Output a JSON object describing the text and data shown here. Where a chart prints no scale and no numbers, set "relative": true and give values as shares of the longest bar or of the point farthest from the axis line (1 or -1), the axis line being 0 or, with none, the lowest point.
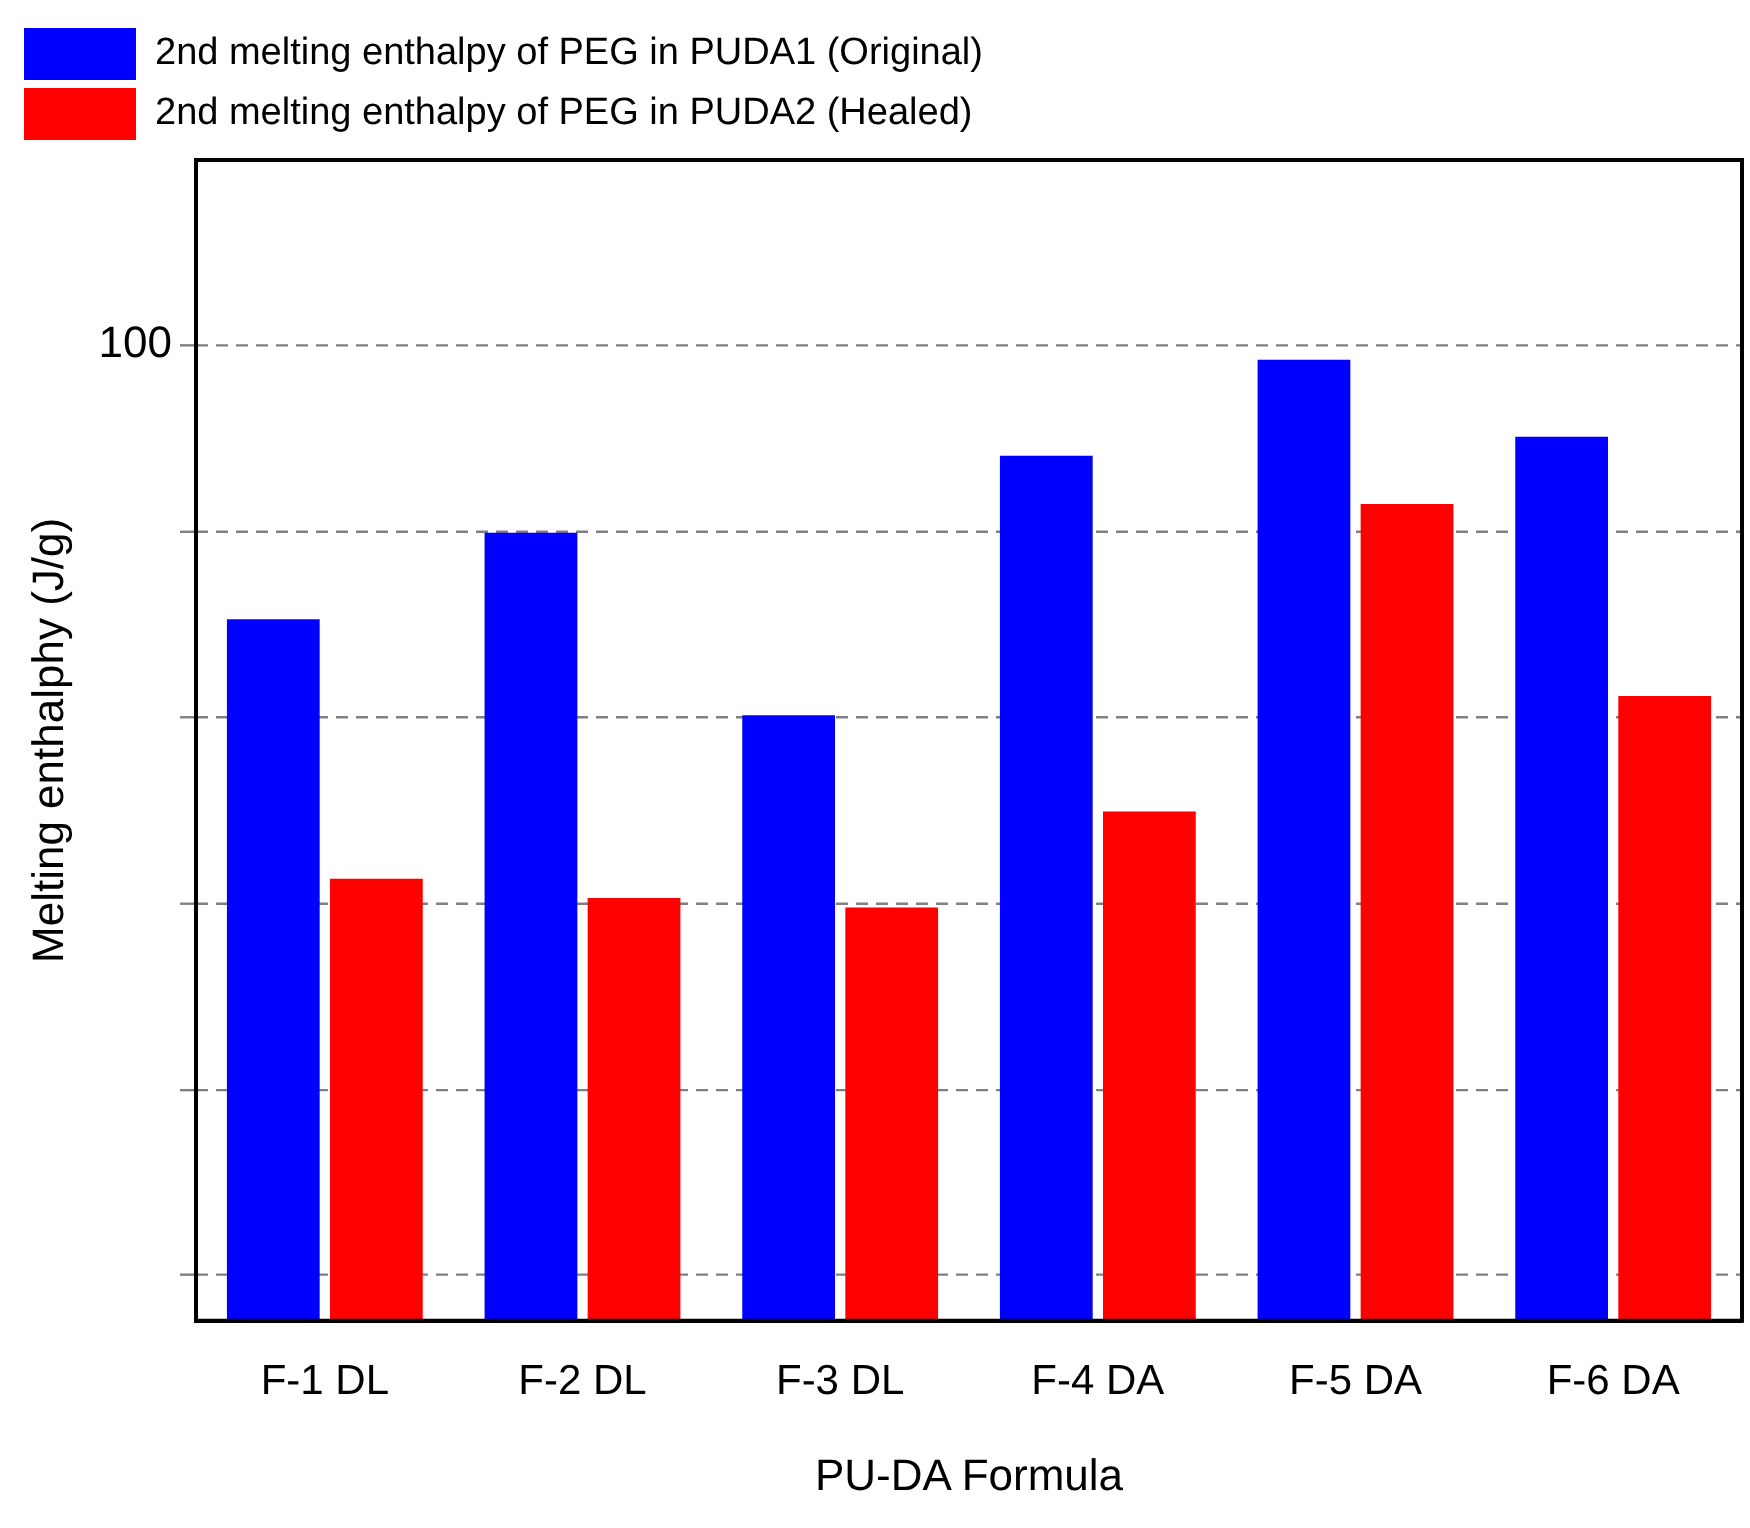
{
  "chart_data": {
    "type": "bar",
    "relative": true,
    "xlabel": "PU-DA Formula",
    "ylabel": "Melting enthalphy (J/g)",
    "categories": [
      "F-1 DL",
      "F-2 DL",
      "F-3 DL",
      "F-4 DA",
      "F-5 DA",
      "F-6 DA"
    ],
    "series": [
      {
        "name": "2nd melting enthalpy of PEG in PUDA1 (Original)",
        "color": "#0000ff",
        "values": [
          0.73,
          0.82,
          0.63,
          0.9,
          1,
          0.92
        ]
      },
      {
        "name": "2nd melting enthalpy of PEG in PUDA2 (Healed)",
        "color": "#ff0000",
        "values": [
          0.46,
          0.44,
          0.43,
          0.53,
          0.85,
          0.65
        ]
      }
    ],
    "ref_lines": [
      {
        "axis": "y",
        "value": 1.015,
        "color": "#808080",
        "line_style": "dashed"
      },
      {
        "axis": "y",
        "value": 0.821,
        "color": "#808080",
        "line_style": "dashed"
      },
      {
        "axis": "y",
        "value": 0.628,
        "color": "#808080",
        "line_style": "dashed"
      },
      {
        "axis": "y",
        "value": 0.434,
        "color": "#808080",
        "line_style": "dashed"
      },
      {
        "axis": "y",
        "value": 0.24,
        "color": "#808080",
        "line_style": "dashed"
      },
      {
        "axis": "y",
        "value": 0.048,
        "color": "#808080",
        "line_style": "dashed"
      }
    ],
    "annotations": [
      "100"
    ],
    "legend": "top left"
  }
}
